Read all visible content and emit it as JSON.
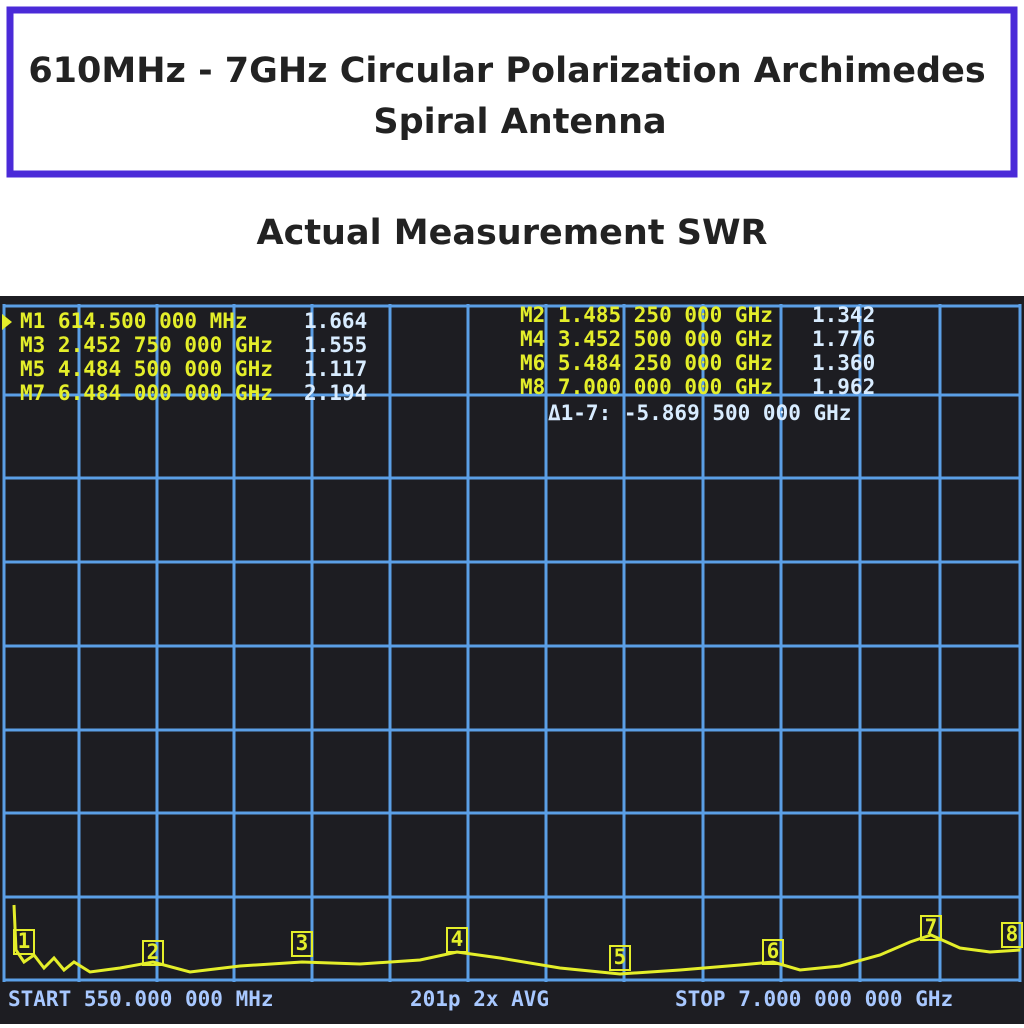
{
  "header": {
    "title_line1": "610MHz - 7GHz Circular Polarization Archimedes",
    "title_line2": "Spiral Antenna"
  },
  "subtitle": "Actual Measurement SWR",
  "screen": {
    "markers": [
      {
        "label": "M1 614.500 000 MHz",
        "value": "1.664",
        "flag": "1"
      },
      {
        "label": "M2 1.485 250 000 GHz",
        "value": "1.342",
        "flag": "2"
      },
      {
        "label": "M3 2.452 750 000 GHz",
        "value": "1.555",
        "flag": "3"
      },
      {
        "label": "M4 3.452 500 000 GHz",
        "value": "1.776",
        "flag": "4"
      },
      {
        "label": "M5 4.484 500 000 GHz",
        "value": "1.117",
        "flag": "5"
      },
      {
        "label": "M6 5.484 250 000 GHz",
        "value": "1.360",
        "flag": "6"
      },
      {
        "label": "M7 6.484 000 000 GHz",
        "value": "2.194",
        "flag": "7"
      },
      {
        "label": "M8 7.000 000 000 GHz",
        "value": "1.962",
        "flag": "8"
      }
    ],
    "delta": "Δ1-7: -5.869 500 000 GHz",
    "footer": {
      "start": "START  550.000 000 MHz",
      "points": "201p  2x AVG",
      "stop": "STOP 7.000 000 000 GHz"
    }
  }
}
